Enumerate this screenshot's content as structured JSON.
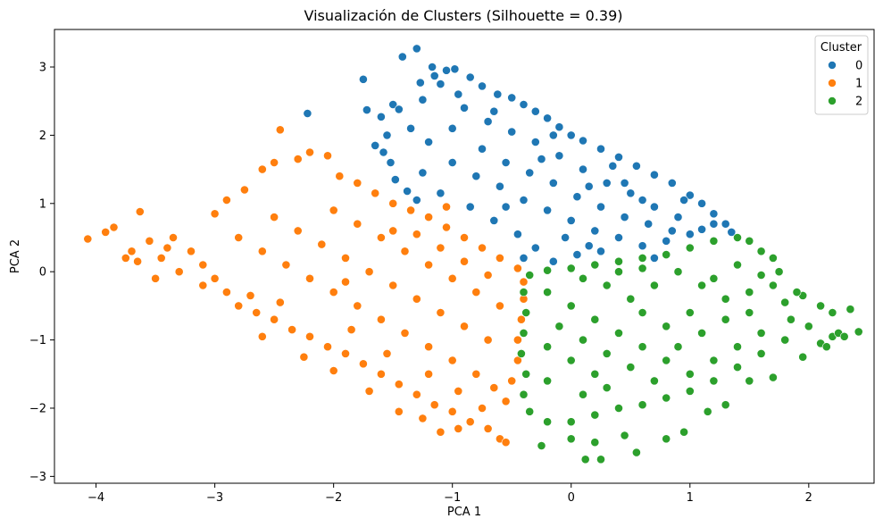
{
  "chart_data": {
    "type": "scatter",
    "title": "Visualización de Clusters (Silhouette = 0.39)",
    "xlabel": "PCA 1",
    "ylabel": "PCA 2",
    "xlim": [
      -4.35,
      2.55
    ],
    "ylim": [
      -3.1,
      3.55
    ],
    "xticks": [
      -4,
      -3,
      -2,
      -1,
      0,
      1,
      2
    ],
    "yticks": [
      -3,
      -2,
      -1,
      0,
      1,
      2,
      3
    ],
    "grid": false,
    "legend": {
      "title": "Cluster",
      "placement": "top-right"
    },
    "series": [
      {
        "name": "0",
        "color": "#1f77b4",
        "points": [
          [
            -1.3,
            3.27
          ],
          [
            -1.42,
            3.15
          ],
          [
            -1.17,
            3.0
          ],
          [
            -1.05,
            2.95
          ],
          [
            -0.98,
            2.97
          ],
          [
            -1.15,
            2.87
          ],
          [
            -1.1,
            2.75
          ],
          [
            -1.27,
            2.77
          ],
          [
            -1.75,
            2.82
          ],
          [
            -2.22,
            2.32
          ],
          [
            -1.72,
            2.37
          ],
          [
            -1.6,
            2.27
          ],
          [
            -1.5,
            2.45
          ],
          [
            -1.45,
            2.38
          ],
          [
            -1.25,
            2.52
          ],
          [
            -1.65,
            1.85
          ],
          [
            -1.58,
            1.75
          ],
          [
            -1.52,
            1.6
          ],
          [
            -1.48,
            1.35
          ],
          [
            -1.38,
            1.18
          ],
          [
            -1.3,
            1.05
          ],
          [
            -0.85,
            2.85
          ],
          [
            -0.75,
            2.72
          ],
          [
            -0.62,
            2.6
          ],
          [
            -0.5,
            2.55
          ],
          [
            -0.4,
            2.45
          ],
          [
            -0.3,
            2.35
          ],
          [
            -0.2,
            2.25
          ],
          [
            -0.1,
            2.12
          ],
          [
            0.0,
            2.0
          ],
          [
            0.1,
            1.92
          ],
          [
            0.25,
            1.8
          ],
          [
            0.4,
            1.68
          ],
          [
            0.55,
            1.55
          ],
          [
            0.7,
            1.42
          ],
          [
            0.85,
            1.3
          ],
          [
            1.0,
            1.12
          ],
          [
            1.1,
            1.0
          ],
          [
            1.2,
            0.85
          ],
          [
            1.3,
            0.7
          ],
          [
            1.35,
            0.58
          ],
          [
            -0.9,
            2.4
          ],
          [
            -0.7,
            2.2
          ],
          [
            -0.5,
            2.05
          ],
          [
            -0.3,
            1.9
          ],
          [
            -0.1,
            1.7
          ],
          [
            0.1,
            1.5
          ],
          [
            0.3,
            1.3
          ],
          [
            0.5,
            1.15
          ],
          [
            0.7,
            0.95
          ],
          [
            0.9,
            0.8
          ],
          [
            1.1,
            0.62
          ],
          [
            -1.0,
            1.6
          ],
          [
            -0.8,
            1.4
          ],
          [
            -0.6,
            1.25
          ],
          [
            -0.4,
            1.05
          ],
          [
            -0.2,
            0.9
          ],
          [
            0.0,
            0.75
          ],
          [
            0.2,
            0.6
          ],
          [
            0.4,
            0.5
          ],
          [
            0.6,
            0.38
          ],
          [
            0.8,
            0.45
          ],
          [
            1.0,
            0.55
          ],
          [
            -1.1,
            1.15
          ],
          [
            -0.85,
            0.95
          ],
          [
            -0.65,
            0.75
          ],
          [
            -0.45,
            0.55
          ],
          [
            -0.3,
            0.35
          ],
          [
            -0.15,
            0.15
          ],
          [
            0.05,
            0.25
          ],
          [
            0.25,
            0.3
          ],
          [
            -0.75,
            1.8
          ],
          [
            -0.55,
            1.6
          ],
          [
            -0.35,
            1.45
          ],
          [
            -0.15,
            1.3
          ],
          [
            0.05,
            1.1
          ],
          [
            0.25,
            0.95
          ],
          [
            0.45,
            0.8
          ],
          [
            0.65,
            0.7
          ],
          [
            0.85,
            0.6
          ],
          [
            -1.2,
            1.9
          ],
          [
            -1.0,
            2.1
          ],
          [
            -0.95,
            2.6
          ],
          [
            -0.65,
            2.35
          ],
          [
            -0.25,
            1.65
          ],
          [
            0.15,
            1.25
          ],
          [
            0.35,
            1.55
          ],
          [
            0.6,
            1.05
          ],
          [
            -0.05,
            0.5
          ],
          [
            -0.55,
            0.95
          ],
          [
            -1.25,
            1.45
          ],
          [
            -0.15,
            2.0
          ],
          [
            0.45,
            1.3
          ],
          [
            0.95,
            1.05
          ],
          [
            1.2,
            0.7
          ],
          [
            -0.4,
            0.2
          ],
          [
            0.15,
            0.38
          ],
          [
            0.7,
            0.2
          ],
          [
            -1.35,
            2.1
          ],
          [
            -1.55,
            2.0
          ]
        ]
      },
      {
        "name": "1",
        "color": "#ff7f0e",
        "points": [
          [
            -4.07,
            0.48
          ],
          [
            -3.92,
            0.58
          ],
          [
            -3.85,
            0.65
          ],
          [
            -3.75,
            0.2
          ],
          [
            -3.7,
            0.3
          ],
          [
            -3.65,
            0.15
          ],
          [
            -3.55,
            0.45
          ],
          [
            -3.45,
            0.2
          ],
          [
            -3.35,
            0.5
          ],
          [
            -3.2,
            0.3
          ],
          [
            -3.1,
            0.1
          ],
          [
            -3.0,
            -0.1
          ],
          [
            -2.9,
            -0.3
          ],
          [
            -2.8,
            -0.5
          ],
          [
            -2.65,
            -0.6
          ],
          [
            -2.5,
            -0.7
          ],
          [
            -2.35,
            -0.85
          ],
          [
            -2.2,
            -0.95
          ],
          [
            -2.05,
            -1.1
          ],
          [
            -1.9,
            -1.2
          ],
          [
            -1.75,
            -1.35
          ],
          [
            -1.6,
            -1.5
          ],
          [
            -1.45,
            -1.65
          ],
          [
            -1.3,
            -1.8
          ],
          [
            -1.15,
            -1.95
          ],
          [
            -1.0,
            -2.05
          ],
          [
            -0.85,
            -2.2
          ],
          [
            -0.7,
            -2.3
          ],
          [
            -0.6,
            -2.45
          ],
          [
            -0.55,
            -2.5
          ],
          [
            -3.63,
            0.88
          ],
          [
            -3.0,
            0.85
          ],
          [
            -2.9,
            1.05
          ],
          [
            -2.75,
            1.2
          ],
          [
            -2.6,
            1.5
          ],
          [
            -2.5,
            1.6
          ],
          [
            -2.45,
            2.08
          ],
          [
            -2.3,
            1.65
          ],
          [
            -2.2,
            1.75
          ],
          [
            -2.05,
            1.7
          ],
          [
            -1.95,
            1.4
          ],
          [
            -1.8,
            1.3
          ],
          [
            -1.65,
            1.15
          ],
          [
            -1.5,
            1.0
          ],
          [
            -1.35,
            0.9
          ],
          [
            -1.2,
            0.8
          ],
          [
            -1.05,
            0.65
          ],
          [
            -0.9,
            0.5
          ],
          [
            -0.75,
            0.35
          ],
          [
            -0.6,
            0.2
          ],
          [
            -0.45,
            0.05
          ],
          [
            -0.4,
            -0.15
          ],
          [
            -0.4,
            -0.4
          ],
          [
            -0.42,
            -0.7
          ],
          [
            -0.45,
            -1.0
          ],
          [
            -0.45,
            -1.3
          ],
          [
            -0.5,
            -1.6
          ],
          [
            -0.55,
            -1.9
          ],
          [
            -2.8,
            0.5
          ],
          [
            -2.6,
            0.3
          ],
          [
            -2.4,
            0.1
          ],
          [
            -2.2,
            -0.1
          ],
          [
            -2.0,
            -0.3
          ],
          [
            -1.8,
            -0.5
          ],
          [
            -1.6,
            -0.7
          ],
          [
            -1.4,
            -0.9
          ],
          [
            -1.2,
            -1.1
          ],
          [
            -1.0,
            -1.3
          ],
          [
            -0.8,
            -1.5
          ],
          [
            -0.65,
            -1.7
          ],
          [
            -2.5,
            0.8
          ],
          [
            -2.3,
            0.6
          ],
          [
            -2.1,
            0.4
          ],
          [
            -1.9,
            0.2
          ],
          [
            -1.7,
            0.0
          ],
          [
            -1.5,
            -0.2
          ],
          [
            -1.3,
            -0.4
          ],
          [
            -1.1,
            -0.6
          ],
          [
            -0.9,
            -0.8
          ],
          [
            -0.7,
            -1.0
          ],
          [
            -2.0,
            0.9
          ],
          [
            -1.8,
            0.7
          ],
          [
            -1.6,
            0.5
          ],
          [
            -1.4,
            0.3
          ],
          [
            -1.2,
            0.1
          ],
          [
            -1.0,
            -0.1
          ],
          [
            -0.8,
            -0.3
          ],
          [
            -0.6,
            -0.5
          ],
          [
            -1.5,
            0.6
          ],
          [
            -1.3,
            0.55
          ],
          [
            -1.1,
            0.35
          ],
          [
            -0.9,
            0.15
          ],
          [
            -0.7,
            -0.05
          ],
          [
            -3.3,
            0.0
          ],
          [
            -3.1,
            -0.2
          ],
          [
            -2.7,
            -0.35
          ],
          [
            -2.45,
            -0.45
          ],
          [
            -1.85,
            -0.85
          ],
          [
            -1.55,
            -1.2
          ],
          [
            -1.2,
            -1.5
          ],
          [
            -0.95,
            -1.75
          ],
          [
            -0.75,
            -2.0
          ],
          [
            -1.1,
            -2.35
          ],
          [
            -0.95,
            -2.3
          ],
          [
            -1.25,
            -2.15
          ],
          [
            -1.45,
            -2.05
          ],
          [
            -1.7,
            -1.75
          ],
          [
            -2.0,
            -1.45
          ],
          [
            -2.25,
            -1.25
          ],
          [
            -2.6,
            -0.95
          ],
          [
            -3.5,
            -0.1
          ],
          [
            -3.4,
            0.35
          ],
          [
            -1.9,
            -0.15
          ],
          [
            -1.05,
            0.95
          ]
        ]
      },
      {
        "name": "2",
        "color": "#2ca02c",
        "points": [
          [
            0.12,
            -2.75
          ],
          [
            0.25,
            -2.75
          ],
          [
            0.55,
            -2.65
          ],
          [
            -0.25,
            -2.55
          ],
          [
            0.0,
            -2.45
          ],
          [
            0.2,
            -2.5
          ],
          [
            0.45,
            -2.4
          ],
          [
            0.8,
            -2.45
          ],
          [
            0.95,
            -2.35
          ],
          [
            1.15,
            -2.05
          ],
          [
            1.3,
            -1.95
          ],
          [
            1.5,
            -1.6
          ],
          [
            1.7,
            -1.55
          ],
          [
            1.95,
            -1.25
          ],
          [
            2.1,
            -1.05
          ],
          [
            2.2,
            -0.95
          ],
          [
            2.25,
            -0.9
          ],
          [
            2.3,
            -0.95
          ],
          [
            2.35,
            -0.55
          ],
          [
            2.42,
            -0.88
          ],
          [
            2.2,
            -0.6
          ],
          [
            2.1,
            -0.5
          ],
          [
            1.95,
            -0.35
          ],
          [
            1.9,
            -0.3
          ],
          [
            1.8,
            -0.45
          ],
          [
            1.75,
            0.0
          ],
          [
            1.7,
            0.2
          ],
          [
            1.6,
            0.3
          ],
          [
            1.5,
            0.45
          ],
          [
            1.4,
            0.5
          ],
          [
            1.2,
            0.45
          ],
          [
            1.0,
            0.35
          ],
          [
            0.8,
            0.25
          ],
          [
            0.6,
            0.2
          ],
          [
            0.4,
            0.15
          ],
          [
            0.2,
            0.1
          ],
          [
            0.0,
            0.05
          ],
          [
            -0.2,
            0.02
          ],
          [
            -0.35,
            -0.05
          ],
          [
            -0.4,
            -0.3
          ],
          [
            -0.38,
            -0.6
          ],
          [
            -0.4,
            -0.9
          ],
          [
            -0.42,
            -1.2
          ],
          [
            -0.38,
            -1.5
          ],
          [
            -0.4,
            -1.8
          ],
          [
            -0.35,
            -2.05
          ],
          [
            -0.2,
            -2.2
          ],
          [
            0.0,
            -2.2
          ],
          [
            0.2,
            -2.1
          ],
          [
            0.4,
            -2.0
          ],
          [
            0.6,
            -1.95
          ],
          [
            0.8,
            -1.85
          ],
          [
            1.0,
            -1.75
          ],
          [
            1.2,
            -1.6
          ],
          [
            1.4,
            -1.4
          ],
          [
            1.6,
            -1.2
          ],
          [
            1.8,
            -1.0
          ],
          [
            1.85,
            -0.7
          ],
          [
            -0.2,
            -0.3
          ],
          [
            0.0,
            -0.5
          ],
          [
            0.2,
            -0.7
          ],
          [
            0.4,
            -0.9
          ],
          [
            0.6,
            -1.1
          ],
          [
            0.8,
            -1.3
          ],
          [
            1.0,
            -1.5
          ],
          [
            1.2,
            -1.3
          ],
          [
            1.4,
            -1.1
          ],
          [
            1.6,
            -0.9
          ],
          [
            1.5,
            -0.6
          ],
          [
            1.3,
            -0.4
          ],
          [
            1.1,
            -0.2
          ],
          [
            0.9,
            0.0
          ],
          [
            0.7,
            -0.2
          ],
          [
            0.5,
            -0.4
          ],
          [
            0.3,
            -0.2
          ],
          [
            0.1,
            -0.1
          ],
          [
            -0.1,
            -0.8
          ],
          [
            0.1,
            -1.0
          ],
          [
            0.3,
            -1.2
          ],
          [
            0.5,
            -1.4
          ],
          [
            0.7,
            -1.6
          ],
          [
            0.9,
            -1.1
          ],
          [
            1.1,
            -0.9
          ],
          [
            1.3,
            -0.7
          ],
          [
            1.5,
            -0.3
          ],
          [
            1.7,
            -0.2
          ],
          [
            0.2,
            -1.5
          ],
          [
            0.0,
            -1.3
          ],
          [
            -0.2,
            -1.1
          ],
          [
            -0.2,
            -1.6
          ],
          [
            0.1,
            -1.8
          ],
          [
            0.3,
            -1.7
          ],
          [
            0.6,
            -0.6
          ],
          [
            0.8,
            -0.8
          ],
          [
            1.0,
            -0.6
          ],
          [
            1.2,
            -0.1
          ],
          [
            1.4,
            0.1
          ],
          [
            0.4,
            0.0
          ],
          [
            0.6,
            0.05
          ],
          [
            1.6,
            -0.05
          ],
          [
            2.0,
            -0.8
          ],
          [
            2.15,
            -1.1
          ]
        ]
      }
    ]
  }
}
